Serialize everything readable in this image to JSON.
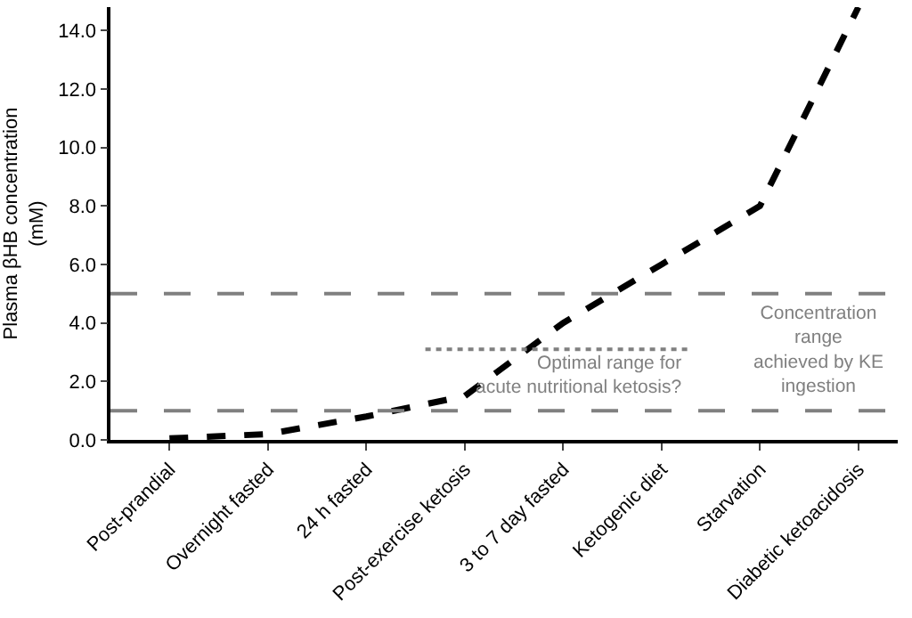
{
  "chart_data": {
    "type": "line",
    "ylabel": "Plasma βHB concentration (mM)",
    "categories": [
      "Post-prandial",
      "Overnight fasted",
      "24 h fasted",
      "Post-exercise ketosis",
      "3 to 7 day fasted",
      "Ketogenic diet",
      "Starvation",
      "Diabetic ketoacidosis"
    ],
    "series": [
      {
        "color": "#000000",
        "values": [
          0.05,
          0.2,
          0.8,
          1.5,
          4,
          6,
          8,
          14.8
        ]
      }
    ],
    "line_style": "dashed",
    "marker": "none",
    "ylim": [
      0,
      14.8
    ],
    "yticks": [
      {
        "value": 0,
        "label": "0.0"
      },
      {
        "value": 2,
        "label": "2.0"
      },
      {
        "value": 4,
        "label": "4.0"
      },
      {
        "value": 6,
        "label": "6.0"
      },
      {
        "value": 8,
        "label": "8.0"
      },
      {
        "value": 10,
        "label": "10.0"
      },
      {
        "value": 12,
        "label": "12.0"
      },
      {
        "value": 14,
        "label": "14.0"
      }
    ],
    "ref_lines": [
      {
        "axis": "y",
        "value": 1,
        "color": "#808080",
        "line_style": "dashed"
      },
      {
        "axis": "y",
        "value": 5,
        "color": "#808080",
        "line_style": "dashed"
      },
      {
        "axis": "y",
        "value": 3.1,
        "color": "#808080",
        "line_style": "dotted",
        "label": "Optimal range for acute nutritional ketosis?"
      }
    ],
    "annotations": [
      "Concentration range achieved by KE ingestion"
    ]
  }
}
